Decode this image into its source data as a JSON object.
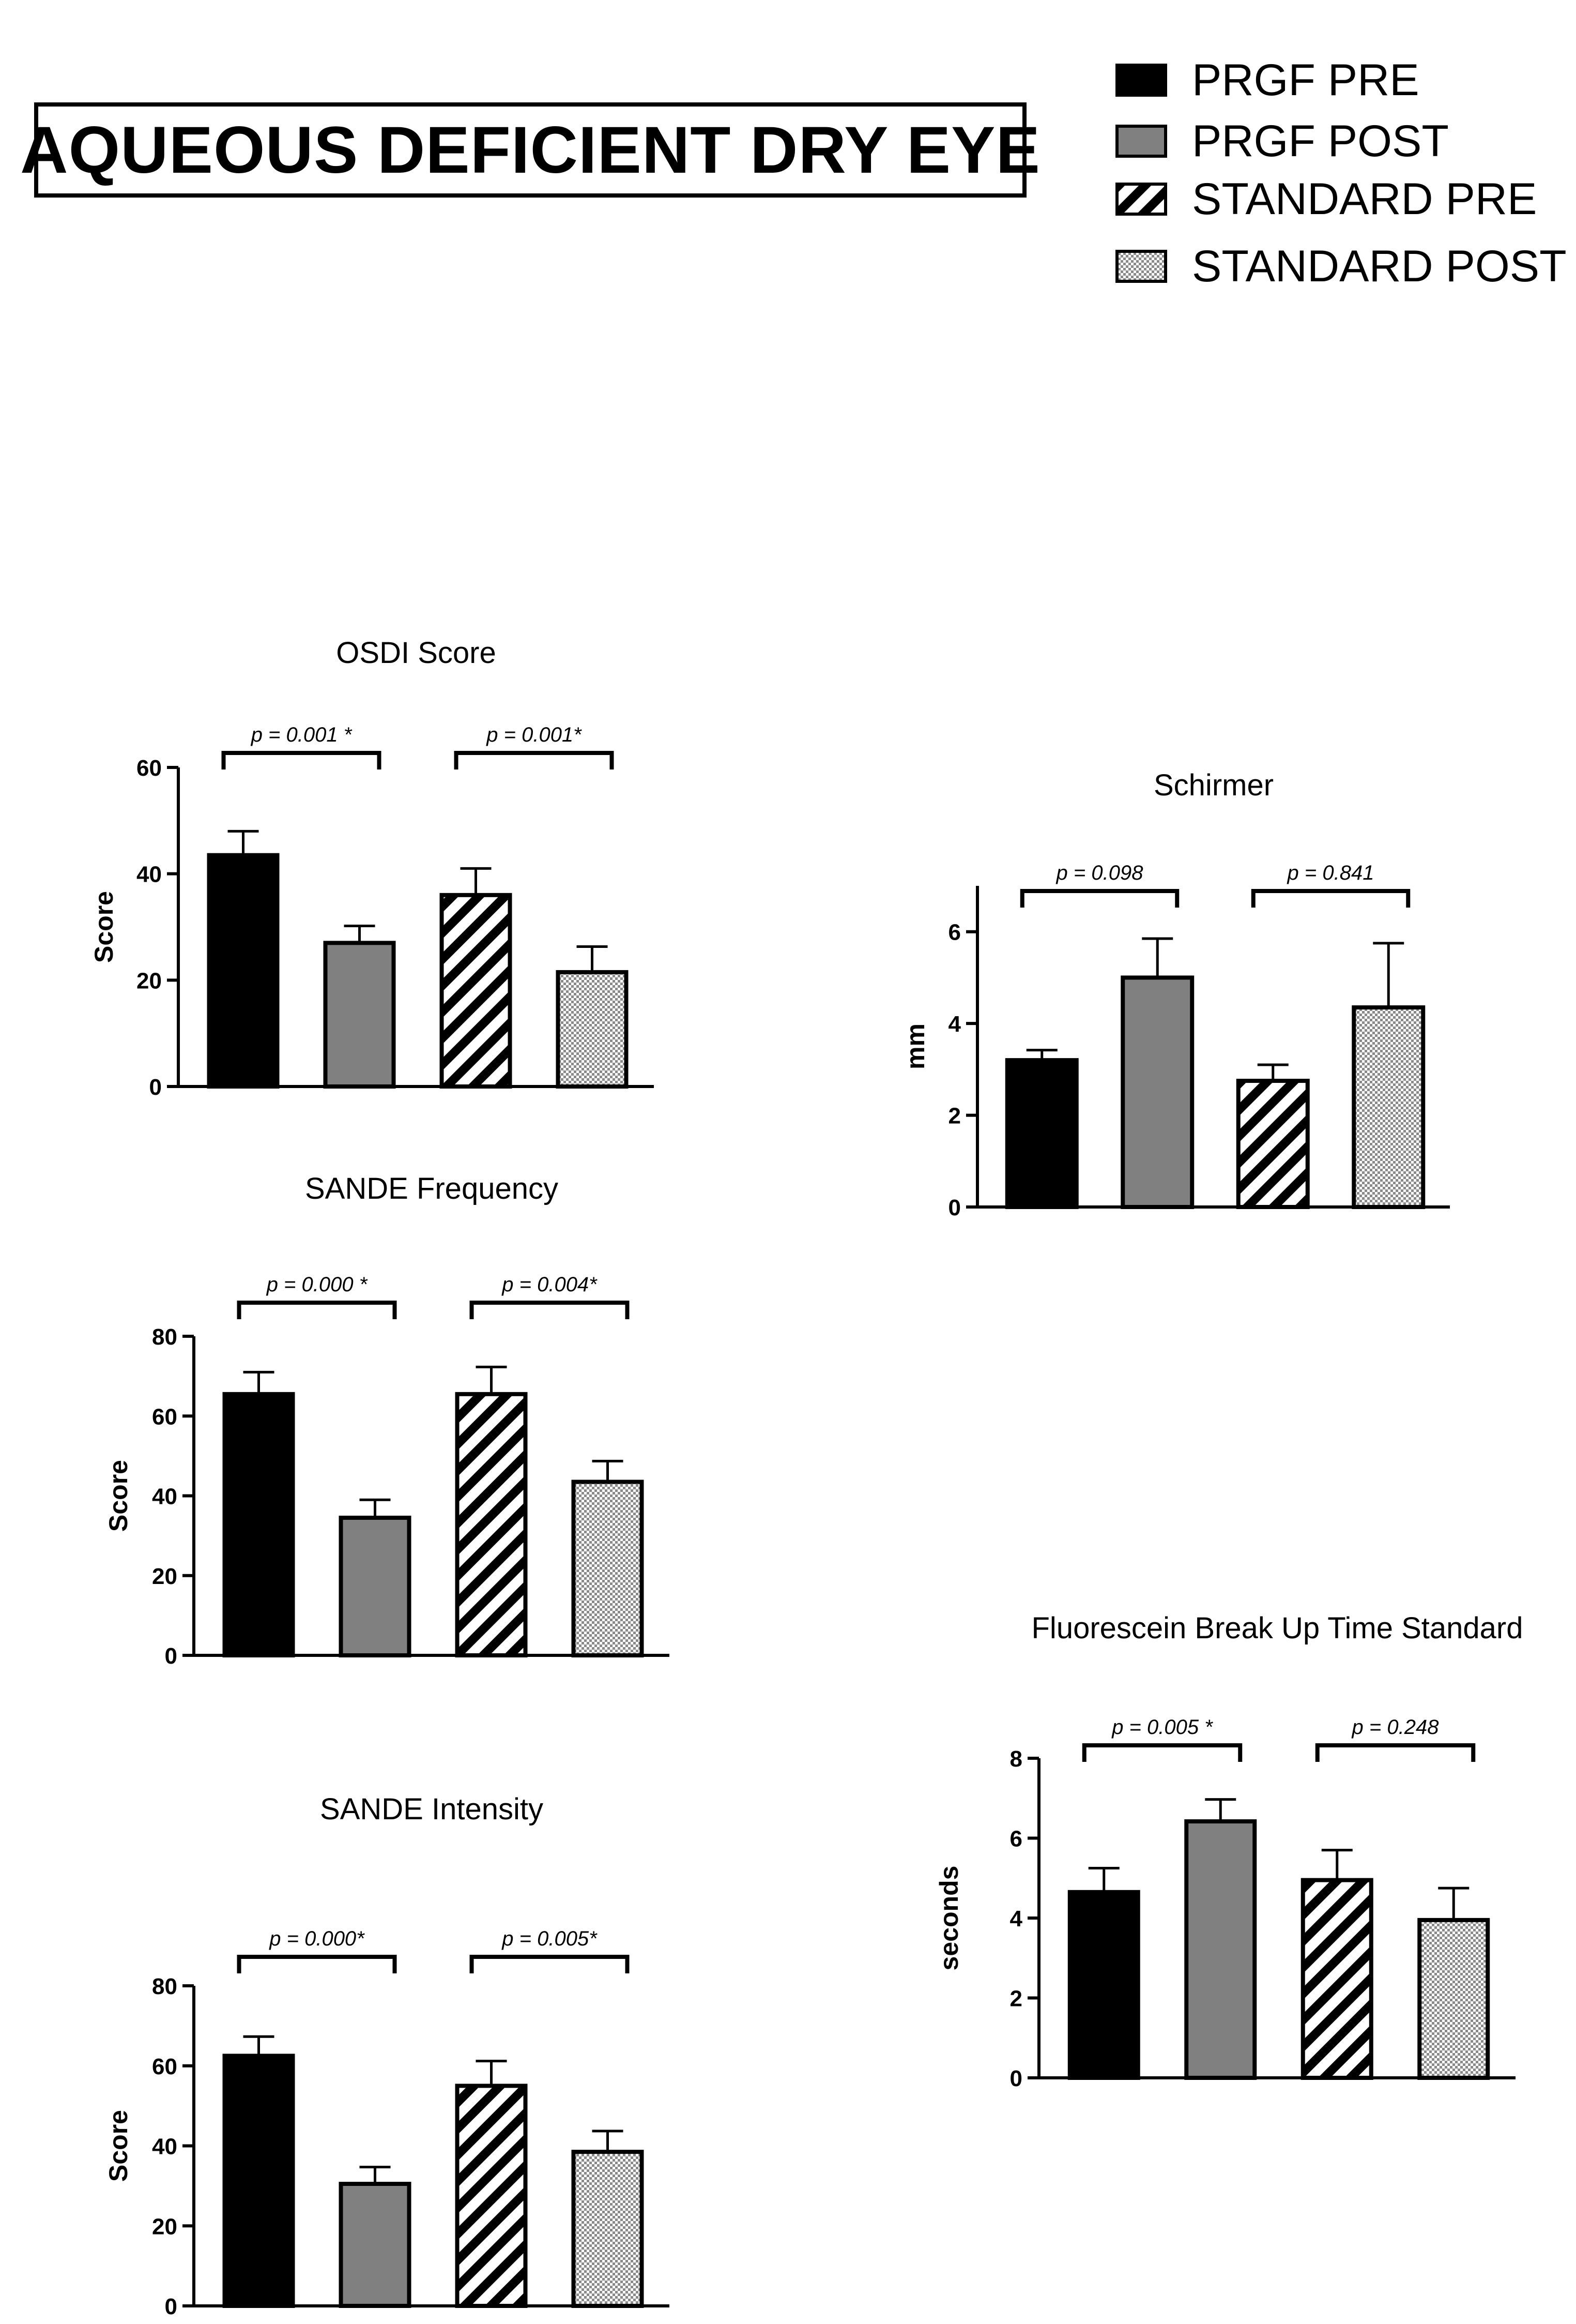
{
  "header": {
    "title": "AQUEOUS DEFICIENT DRY EYE"
  },
  "legend": [
    {
      "label": "PRGF PRE",
      "pattern": "black"
    },
    {
      "label": "PRGF POST",
      "pattern": "gray"
    },
    {
      "label": "STANDARD PRE",
      "pattern": "stripes"
    },
    {
      "label": "STANDARD POST",
      "pattern": "checker"
    }
  ],
  "colors": {
    "prgf_pre": "#000000",
    "prgf_post": "#808080",
    "stripe": "#000000",
    "checker": "#9a9a9a",
    "background": "#ffffff"
  },
  "chart_data": [
    {
      "id": "osdi",
      "type": "bar",
      "title": "OSDI Score",
      "ylabel": "Score",
      "xlabel": "",
      "ylim": [
        0,
        60
      ],
      "yticks": [
        0,
        20,
        40,
        60
      ],
      "categories": [
        "PRGF PRE",
        "PRGF POST",
        "STANDARD PRE",
        "STANDARD POST"
      ],
      "values": [
        43.5,
        27,
        36,
        21.5
      ],
      "errors": [
        4.5,
        3.2,
        5,
        4.8
      ],
      "comparisons": [
        {
          "from": 0,
          "to": 1,
          "label": "p = 0.001 *"
        },
        {
          "from": 2,
          "to": 3,
          "label": "p = 0.001*"
        }
      ]
    },
    {
      "id": "schirmer",
      "type": "bar",
      "title": "Schirmer",
      "ylabel": "mm",
      "xlabel": "",
      "ylim": [
        0,
        7
      ],
      "yticks": [
        0,
        2,
        4,
        6
      ],
      "categories": [
        "PRGF PRE",
        "PRGF POST",
        "STANDARD PRE",
        "STANDARD POST"
      ],
      "values": [
        3.2,
        5,
        2.75,
        4.35
      ],
      "errors": [
        0.22,
        0.85,
        0.35,
        1.4
      ],
      "comparisons": [
        {
          "from": 0,
          "to": 1,
          "label": "p = 0.098"
        },
        {
          "from": 2,
          "to": 3,
          "label": "p = 0.841"
        }
      ]
    },
    {
      "id": "sande_freq",
      "type": "bar",
      "title": "SANDE Frequency",
      "ylabel": "Score",
      "xlabel": "",
      "ylim": [
        0,
        80
      ],
      "yticks": [
        0,
        20,
        40,
        60,
        80
      ],
      "categories": [
        "PRGF PRE",
        "PRGF POST",
        "STANDARD PRE",
        "STANDARD POST"
      ],
      "values": [
        65.5,
        34.5,
        65.5,
        43.5
      ],
      "errors": [
        5.5,
        4.5,
        6.8,
        5.2
      ],
      "comparisons": [
        {
          "from": 0,
          "to": 1,
          "label": "p = 0.000 *"
        },
        {
          "from": 2,
          "to": 3,
          "label": "p = 0.004*"
        }
      ]
    },
    {
      "id": "sande_int",
      "type": "bar",
      "title": "SANDE Intensity",
      "ylabel": "Score",
      "xlabel": "",
      "ylim": [
        0,
        80
      ],
      "yticks": [
        0,
        20,
        40,
        60,
        80
      ],
      "categories": [
        "PRGF PRE",
        "PRGF POST",
        "STANDARD PRE",
        "STANDARD POST"
      ],
      "values": [
        62.5,
        30.5,
        55,
        38.5
      ],
      "errors": [
        4.8,
        4.2,
        6.2,
        5.2
      ],
      "comparisons": [
        {
          "from": 0,
          "to": 1,
          "label": "p = 0.000*"
        },
        {
          "from": 2,
          "to": 3,
          "label": "p = 0.005*"
        }
      ]
    },
    {
      "id": "fbut",
      "type": "bar",
      "title": "Fluorescein Break Up Time Standard",
      "ylabel": "seconds",
      "xlabel": "",
      "ylim": [
        0,
        8
      ],
      "yticks": [
        0,
        2,
        4,
        6,
        8
      ],
      "categories": [
        "PRGF PRE",
        "PRGF POST",
        "STANDARD PRE",
        "STANDARD POST"
      ],
      "values": [
        4.65,
        6.42,
        4.95,
        3.95
      ],
      "errors": [
        0.6,
        0.55,
        0.75,
        0.8
      ],
      "comparisons": [
        {
          "from": 0,
          "to": 1,
          "label": "p = 0.005 *"
        },
        {
          "from": 2,
          "to": 3,
          "label": "p = 0.248"
        }
      ]
    }
  ]
}
